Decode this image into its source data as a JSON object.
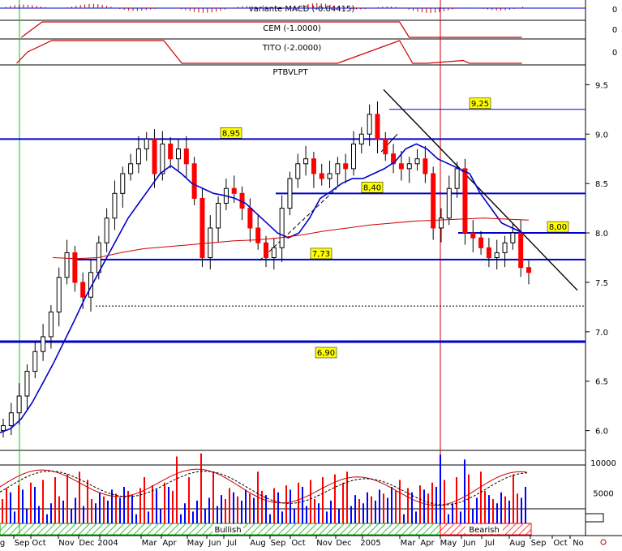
{
  "chart_data": [
    {
      "type": "line",
      "title": "variante MACD (-0.04415)",
      "ylim": [
        -1,
        1
      ],
      "y_ticks": [
        "0"
      ],
      "color": "#cc0000"
    },
    {
      "type": "line",
      "title": "CEM (-1.0000)",
      "ylim": [
        -1,
        1
      ],
      "y_ticks": [
        "0"
      ],
      "color": "#cc0000",
      "x": [
        "2003-09-01",
        "2003-10-01",
        "2004-11-20",
        "2004-12-01",
        "2005-02-01",
        "2005-03-01",
        "2005-03-15",
        "2005-04-01",
        "2005-08-25"
      ],
      "y": [
        -1,
        1,
        1,
        1,
        1,
        1,
        -1,
        -1,
        -1
      ]
    },
    {
      "type": "line",
      "title": "TITO (-2.0000)",
      "ylim": [
        -2,
        2
      ],
      "y_ticks": [
        "0"
      ],
      "color": "#cc0000",
      "x": [
        "2003-08-25",
        "2003-09-10",
        "2003-10-15",
        "2004-03-25",
        "2004-04-20",
        "2004-12-01",
        "2005-03-01",
        "2005-03-20",
        "2005-04-10",
        "2005-06-01",
        "2005-06-10",
        "2005-06-25",
        "2005-08-25"
      ],
      "y": [
        -2,
        0,
        2,
        2,
        -2,
        -2,
        2,
        -2,
        -2,
        -1.5,
        -2,
        -2,
        -2
      ]
    },
    {
      "type": "candlestick",
      "title": "PTBVLPT",
      "ylim": [
        5.8,
        9.7
      ],
      "y_ticks": [
        "9.5",
        "9.0",
        "8.5",
        "8.0",
        "7.5",
        "7.0",
        "6.5",
        "6.0"
      ],
      "x_ticks": [
        "g",
        "Sep",
        "Oct",
        "Nov",
        "Dec",
        "2004",
        "Mar",
        "Apr",
        "May",
        "Jun",
        "Jul",
        "Aug",
        "Sep",
        "Oct",
        "Nov",
        "Dec",
        "2005",
        "Mar",
        "Apr",
        "May",
        "Jun",
        "Jul",
        "Aug",
        "Sep",
        "Oct",
        "No"
      ],
      "close": [
        6.05,
        6.18,
        6.35,
        6.6,
        6.8,
        6.95,
        7.2,
        7.55,
        7.8,
        7.5,
        7.35,
        7.6,
        7.9,
        8.15,
        8.4,
        8.6,
        8.7,
        8.85,
        8.95,
        8.6,
        8.9,
        8.75,
        8.85,
        8.7,
        8.35,
        7.75,
        8.05,
        8.3,
        8.45,
        8.4,
        8.25,
        8.05,
        7.9,
        7.75,
        7.85,
        8.25,
        8.55,
        8.7,
        8.75,
        8.6,
        8.55,
        8.6,
        8.7,
        8.65,
        8.9,
        9.0,
        9.2,
        8.95,
        8.8,
        8.7,
        8.65,
        8.7,
        8.75,
        8.6,
        8.05,
        8.15,
        8.45,
        8.65,
        8.0,
        7.95,
        7.85,
        7.75,
        7.8,
        7.9,
        8.0,
        7.65,
        7.6
      ],
      "hline_labels": [
        "9,25",
        "8,95",
        "8,40",
        "8,00",
        "7,73",
        "6,90"
      ],
      "hline_values": [
        9.25,
        8.95,
        8.4,
        8.0,
        7.73,
        6.9
      ],
      "moving_averages": [
        {
          "period": "short",
          "color": "#0000cc",
          "values": [
            5.98,
            6.02,
            6.12,
            6.28,
            6.48,
            6.68,
            6.9,
            7.12,
            7.35,
            7.55,
            7.75,
            7.95,
            8.15,
            8.3,
            8.45,
            8.6,
            8.68,
            8.6,
            8.5,
            8.45,
            8.4,
            8.38,
            8.35,
            8.3,
            8.2,
            8.1,
            8.0,
            7.95,
            8.0,
            8.15,
            8.35,
            8.42,
            8.5,
            8.55,
            8.55,
            8.6,
            8.65,
            8.72,
            8.85,
            8.9,
            8.85,
            8.75,
            8.7,
            8.65,
            8.6,
            8.4,
            8.25,
            8.1,
            8.05,
            8.0
          ]
        },
        {
          "period": "long",
          "color": "#cc0000",
          "values": [
            7.75,
            7.74,
            7.75,
            7.8,
            7.84,
            7.86,
            7.88,
            7.9,
            7.92,
            7.93,
            7.95,
            7.98,
            8.02,
            8.05,
            8.08,
            8.1,
            8.12,
            8.13,
            8.14,
            8.15,
            8.14,
            8.13
          ]
        }
      ],
      "volume": {
        "ylim": [
          0,
          12000
        ],
        "y_ticks": [
          "10000",
          "5000"
        ]
      },
      "annotations": [
        "Bullish",
        "Bearish"
      ]
    }
  ],
  "colors": {
    "up": "#ffffff",
    "down": "#ff0000",
    "hline": "#0000cc",
    "trend": "#000000",
    "label_bg": "#ffff00",
    "signal_red": "#cc0000",
    "green_marker": "#00cc00",
    "bullish_hatch": "#00aa00",
    "bearish_hatch": "#ff0000"
  }
}
